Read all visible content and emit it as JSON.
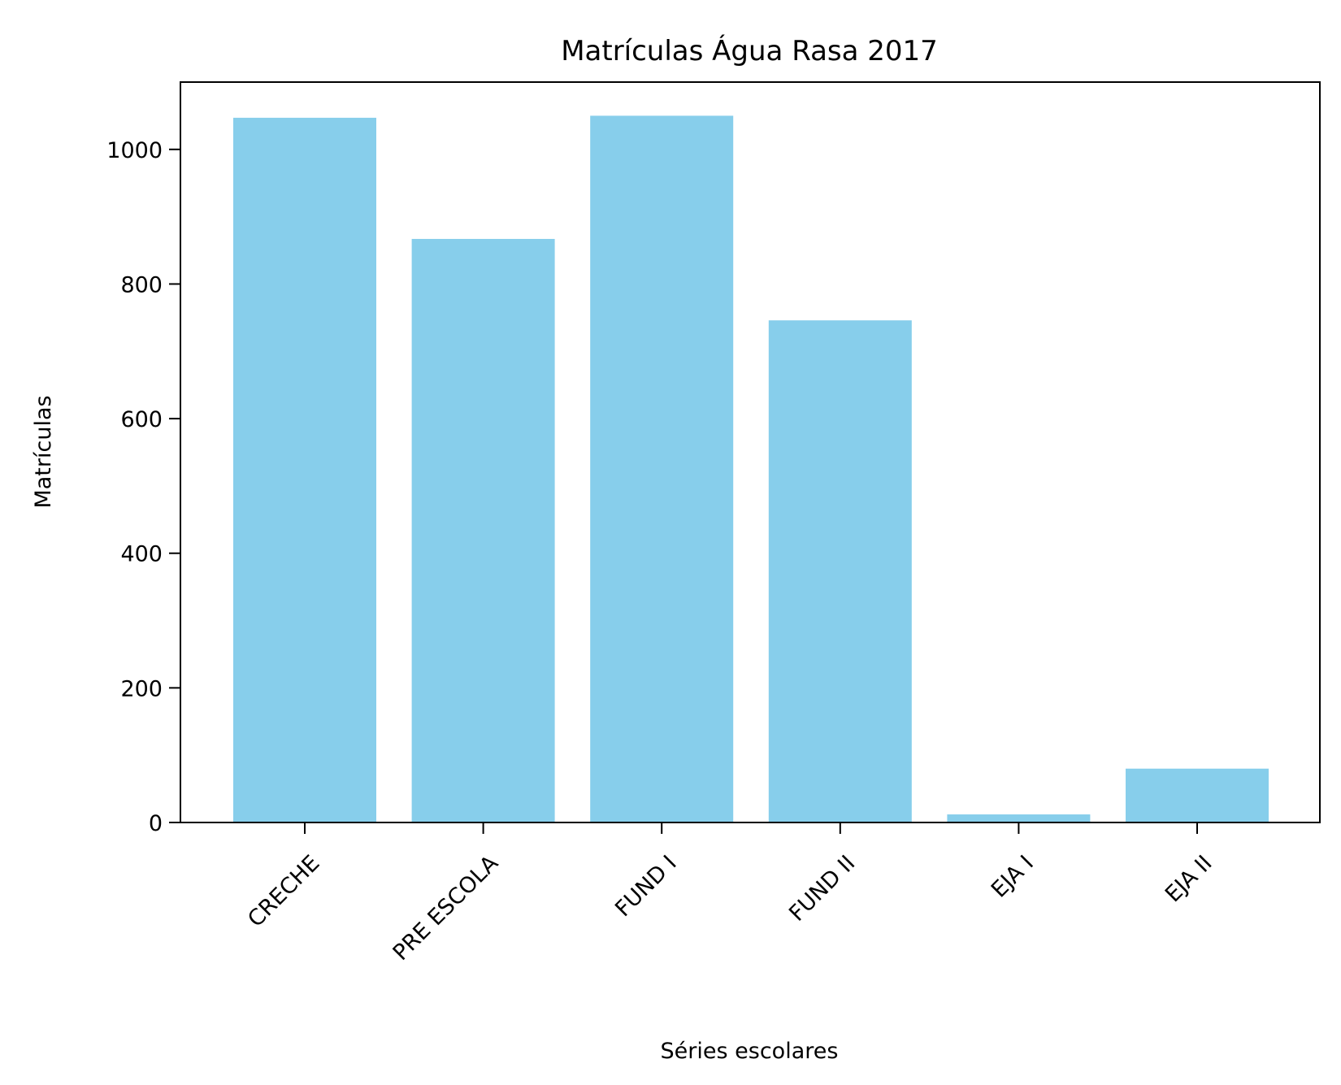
{
  "chart_data": {
    "type": "bar",
    "title": "Matrículas Água Rasa 2017",
    "xlabel": "Séries escolares",
    "ylabel": "Matrículas",
    "categories": [
      "CRECHE",
      "PRE ESCOLA",
      "FUND I",
      "FUND II",
      "EJA I",
      "EJA II"
    ],
    "values": [
      1047,
      867,
      1050,
      746,
      12,
      80
    ],
    "ylim": [
      0,
      1100
    ],
    "yticks": [
      0,
      200,
      400,
      600,
      800,
      1000
    ],
    "grid": false,
    "bar_color": "#87CEEB"
  }
}
